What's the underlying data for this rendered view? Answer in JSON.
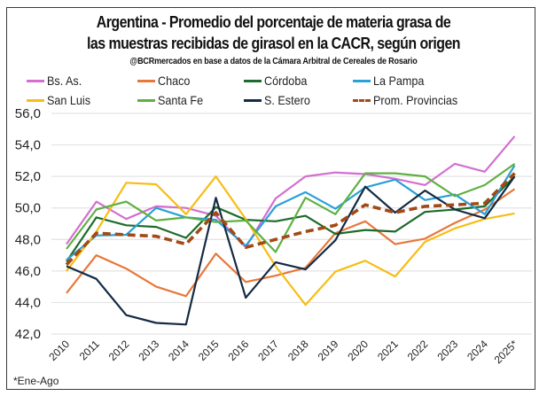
{
  "chart_data": {
    "type": "line",
    "title": "Argentina - Promedio del porcentaje de materia grasa de las muestras recibidas de girasol en la CACR, según origen",
    "title_lines": [
      "Argentina - Promedio del porcentaje de materia grasa de",
      "las muestras recibidas de girasol en la CACR, según origen"
    ],
    "subtitle": "@BCRmercados en base a datos de la Cámara Arbitral de Cereales de Rosario",
    "xlabel": "",
    "ylabel": "",
    "x": [
      "2010",
      "2011",
      "2012",
      "2013",
      "2014",
      "2015",
      "2016",
      "2017",
      "2018",
      "2019",
      "2020",
      "2021",
      "2022",
      "2023",
      "2024",
      "2025*"
    ],
    "ylim": [
      42,
      56
    ],
    "yticks": [
      42,
      44,
      46,
      48,
      50,
      52,
      54,
      56
    ],
    "ytick_labels": [
      "42,0",
      "44,0",
      "46,0",
      "48,0",
      "50,0",
      "52,0",
      "54,0",
      "56,0"
    ],
    "grid": "horizontal",
    "legend_position": "top",
    "series": [
      {
        "name": "Bs. As.",
        "color": "#d36fd0",
        "style": "solid",
        "values": [
          47.7,
          50.4,
          49.3,
          50.1,
          50.0,
          49.5,
          47.5,
          50.6,
          52.0,
          52.25,
          52.15,
          51.85,
          51.45,
          52.8,
          52.3,
          54.55
        ]
      },
      {
        "name": "Chaco",
        "color": "#e8773a",
        "style": "solid",
        "values": [
          44.6,
          47.0,
          46.15,
          45.0,
          44.4,
          47.1,
          45.3,
          45.7,
          46.2,
          48.4,
          49.15,
          47.7,
          48.05,
          49.05,
          49.9,
          51.2
        ]
      },
      {
        "name": "Córdoba",
        "color": "#1d6b2a",
        "style": "solid",
        "values": [
          46.6,
          49.4,
          48.9,
          48.8,
          48.1,
          50.05,
          49.25,
          49.15,
          49.5,
          48.35,
          48.6,
          48.5,
          49.75,
          49.9,
          50.1,
          52.0
        ]
      },
      {
        "name": "La Pampa",
        "color": "#2aa0d8",
        "style": "solid",
        "values": [
          46.7,
          48.25,
          48.3,
          50.0,
          49.4,
          49.25,
          47.6,
          50.1,
          51.0,
          49.95,
          51.3,
          51.8,
          50.5,
          50.85,
          49.6,
          52.7
        ]
      },
      {
        "name": "San Luis",
        "color": "#f7bd16",
        "style": "solid",
        "values": [
          46.0,
          48.5,
          51.6,
          51.5,
          49.6,
          52.0,
          49.3,
          46.3,
          43.85,
          45.95,
          46.65,
          45.65,
          47.85,
          48.7,
          49.3,
          49.65
        ]
      },
      {
        "name": "Santa Fe",
        "color": "#5fb043",
        "style": "solid",
        "values": [
          47.4,
          49.9,
          50.4,
          49.2,
          49.4,
          49.1,
          49.2,
          47.2,
          50.65,
          49.6,
          52.2,
          52.2,
          52.0,
          50.75,
          51.45,
          52.8
        ]
      },
      {
        "name": "S. Estero",
        "color": "#132b45",
        "style": "solid",
        "values": [
          46.3,
          45.5,
          43.2,
          42.7,
          42.6,
          50.65,
          44.3,
          46.55,
          46.1,
          47.95,
          51.35,
          49.7,
          51.1,
          49.9,
          49.35,
          52.0
        ]
      },
      {
        "name": "Prom. Provincias",
        "color": "#a24a17",
        "style": "dashed",
        "values": [
          46.4,
          48.4,
          48.3,
          48.2,
          47.7,
          49.7,
          47.5,
          48.0,
          48.5,
          48.9,
          50.2,
          49.7,
          50.1,
          50.2,
          50.3,
          52.2
        ]
      }
    ],
    "footnote": "*Ene-Ago"
  }
}
